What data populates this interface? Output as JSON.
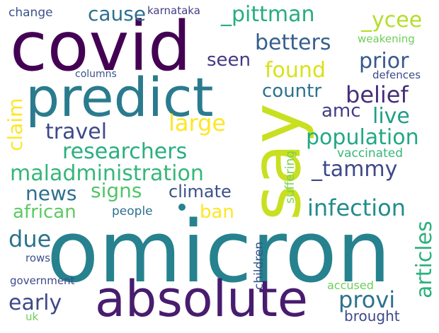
{
  "words": {
    "omicron": "omicron",
    "covid": "covid",
    "say": "say",
    "predict": "predict",
    "absolute": "absolute",
    "pittman": "_pittman",
    "ycee": "_ycee",
    "cause": "cause",
    "change": "change",
    "karnataka": "karnataka",
    "betters": "betters",
    "weakening": "weakening",
    "seen": "seen",
    "prior": "prior",
    "found": "found",
    "columns": "columns",
    "defences": "defences",
    "countr": "countr",
    "belief": "belief",
    "claim": "claim",
    "amc": "amc",
    "live": "live",
    "large": "large",
    "travel": "travel",
    "population": "population",
    "researchers": "researchers",
    "vaccinated": "vaccinated",
    "tammy": "_tammy",
    "maladministration": "maladministration",
    "news": "news",
    "signs": "signs",
    "climate": "climate",
    "suffering": "suffering",
    "african": "african",
    "ban": "ban",
    "infection": "infection",
    "people": "people",
    "due": "due",
    "articles": "articles",
    "rows": "rows",
    "children": "children",
    "early": "early",
    "provi": "provi",
    "government": "government",
    "accused": "accused",
    "brought": "brought",
    "uk": "uk"
  },
  "palette": {
    "dark_purple": "#440154",
    "indigo": "#482878",
    "slate_blue": "#3e4989",
    "steel_blue": "#31688e",
    "teal": "#26828e",
    "sea_green": "#1f9e89",
    "green": "#35b779",
    "light_green": "#6ece58",
    "lime": "#b5de2b",
    "yellow": "#fde725"
  }
}
